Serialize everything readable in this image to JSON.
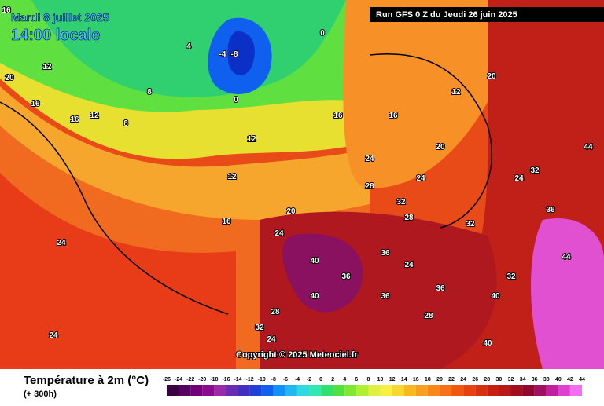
{
  "header": {
    "date": "Mardi 8 juillet 2025",
    "time": "14:00 locale",
    "run": "Run GFS 0 Z du Jeudi 26 juin 2025"
  },
  "copyright": "Copyright © 2025 Meteociel.fr",
  "legend": {
    "title": "Température à 2m (°C)",
    "lead": "(+ 300h)",
    "labels": [
      "-26",
      "-24",
      "-22",
      "-20",
      "-18",
      "-16",
      "-14",
      "-12",
      "-10",
      "-8",
      "-6",
      "-4",
      "-2",
      "0",
      "2",
      "4",
      "6",
      "8",
      "10",
      "12",
      "14",
      "16",
      "18",
      "20",
      "22",
      "24",
      "26",
      "28",
      "30",
      "32",
      "34",
      "36",
      "38",
      "40",
      "42",
      "44"
    ],
    "colors": [
      "#3a0040",
      "#55005e",
      "#700078",
      "#8a0a90",
      "#9a2aa8",
      "#6a2cb0",
      "#4030c0",
      "#2040d8",
      "#1060f0",
      "#1090f8",
      "#20b8f0",
      "#30d8e0",
      "#30e8b0",
      "#30e070",
      "#50e040",
      "#80e830",
      "#b0f030",
      "#e0f040",
      "#f8f040",
      "#f8d830",
      "#f8b820",
      "#f8a020",
      "#f88818",
      "#f87018",
      "#f05810",
      "#e84010",
      "#d83010",
      "#c82010",
      "#b81818",
      "#a01020",
      "#900830",
      "#a01060",
      "#c020a0",
      "#e040d0",
      "#f070f0"
    ]
  },
  "map": {
    "labels": [
      "16",
      "12",
      "20",
      "16",
      "12",
      "8",
      "0",
      "-4",
      "-8",
      "4",
      "0",
      "12",
      "16",
      "8",
      "16",
      "12",
      "24",
      "16",
      "20",
      "24",
      "28",
      "32",
      "36",
      "40",
      "24",
      "28",
      "32",
      "36",
      "40",
      "20",
      "24",
      "32",
      "36",
      "44",
      "40",
      "28",
      "24",
      "16",
      "12",
      "20",
      "24",
      "28",
      "32",
      "36",
      "40",
      "44",
      "32",
      "24",
      "24",
      "36"
    ]
  }
}
